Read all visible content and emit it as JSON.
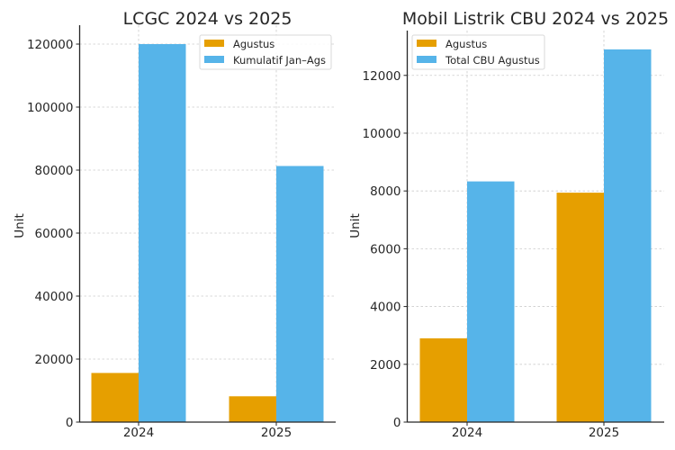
{
  "chart_data": [
    {
      "type": "bar",
      "title": "LCGC 2024 vs 2025",
      "xlabel": "",
      "ylabel": "Unit",
      "categories": [
        "2024",
        "2025"
      ],
      "series": [
        {
          "name": "Agustus",
          "color": "#E69F00",
          "values": [
            15600,
            8200
          ]
        },
        {
          "name": "Kumulatif Jan–Ags",
          "color": "#56B4E9",
          "values": [
            120000,
            81300
          ]
        }
      ],
      "ylim": [
        0,
        126000
      ],
      "yticks": [
        0,
        20000,
        40000,
        60000,
        80000,
        100000,
        120000
      ],
      "ytick_labels": [
        "0",
        "20000",
        "40000",
        "60000",
        "80000",
        "100000",
        "120000"
      ],
      "grid": true,
      "legend_position": "top-right"
    },
    {
      "type": "bar",
      "title": "Mobil Listrik CBU 2024 vs 2025",
      "xlabel": "",
      "ylabel": "Unit",
      "categories": [
        "2024",
        "2025"
      ],
      "series": [
        {
          "name": "Agustus",
          "color": "#E69F00",
          "values": [
            2900,
            7940
          ]
        },
        {
          "name": "Total CBU Agustus",
          "color": "#56B4E9",
          "values": [
            8330,
            12900
          ]
        }
      ],
      "ylim": [
        0,
        13550
      ],
      "yticks": [
        0,
        2000,
        4000,
        6000,
        8000,
        10000,
        12000
      ],
      "ytick_labels": [
        "0",
        "2000",
        "4000",
        "6000",
        "8000",
        "10000",
        "12000"
      ],
      "grid": true,
      "legend_position": "top-left"
    }
  ]
}
